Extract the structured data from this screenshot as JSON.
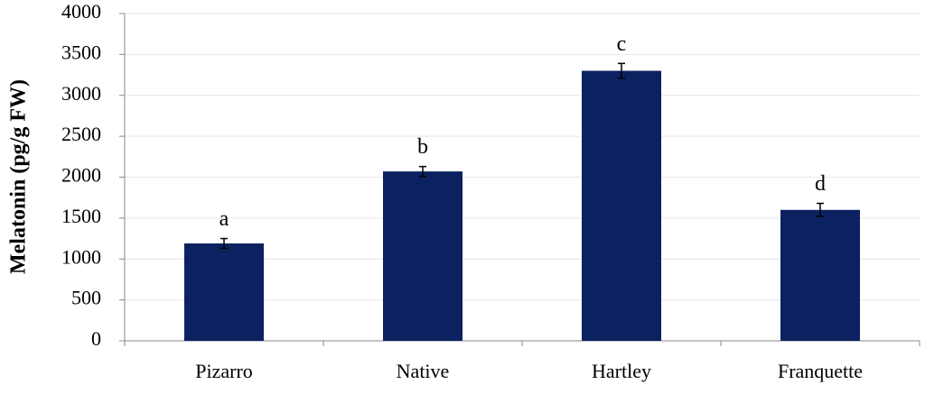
{
  "chart_data": {
    "type": "bar",
    "y_label": "Melatonin (pg/g FW)",
    "categories": [
      "Pizarro",
      "Native",
      "Hartley",
      "Franquette"
    ],
    "values": [
      1190,
      2070,
      3300,
      1600
    ],
    "errors": [
      60,
      60,
      90,
      80
    ],
    "annotations": [
      "a",
      "b",
      "c",
      "d"
    ],
    "color": "#0b2160",
    "ylim": [
      0,
      4000
    ],
    "yticks": [
      0,
      500,
      1000,
      1500,
      2000,
      2500,
      3000,
      3500,
      4000
    ],
    "grid": true
  }
}
